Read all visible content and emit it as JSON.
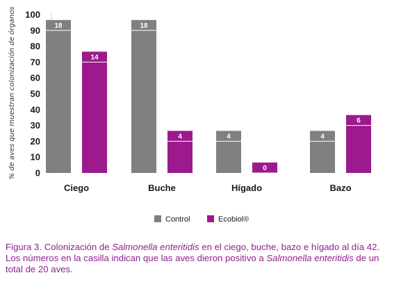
{
  "chart_data": {
    "type": "bar",
    "categories": [
      "Ciego",
      "Buche",
      "Hígado",
      "Bazo"
    ],
    "series": [
      {
        "name": "Control",
        "color": "#808080",
        "values": [
          90,
          90,
          20,
          20
        ],
        "box_labels": [
          "18",
          "18",
          "4",
          "4"
        ]
      },
      {
        "name": "Ecobiol®",
        "color": "#9c1a8c",
        "values": [
          70,
          20,
          0,
          30
        ],
        "box_labels": [
          "14",
          "4",
          "0",
          "6"
        ]
      }
    ],
    "ylabel": "% de aves que muestran colonización de órganos",
    "ylim": [
      0,
      100
    ],
    "yticks": [
      0,
      10,
      20,
      30,
      40,
      50,
      60,
      70,
      80,
      90,
      100
    ],
    "grid": false,
    "legend": "bottom-center"
  },
  "caption": {
    "part1": "Figura 3. Colonización de ",
    "italic1": "Salmonella enteritidis",
    "part2": " en el ciego, buche, bazo e hígado al día 42. Los números en la casilla indican que las aves dieron positivo a ",
    "italic2": "Salmonella enteritidis",
    "part3": " de un total de 20 aves."
  }
}
